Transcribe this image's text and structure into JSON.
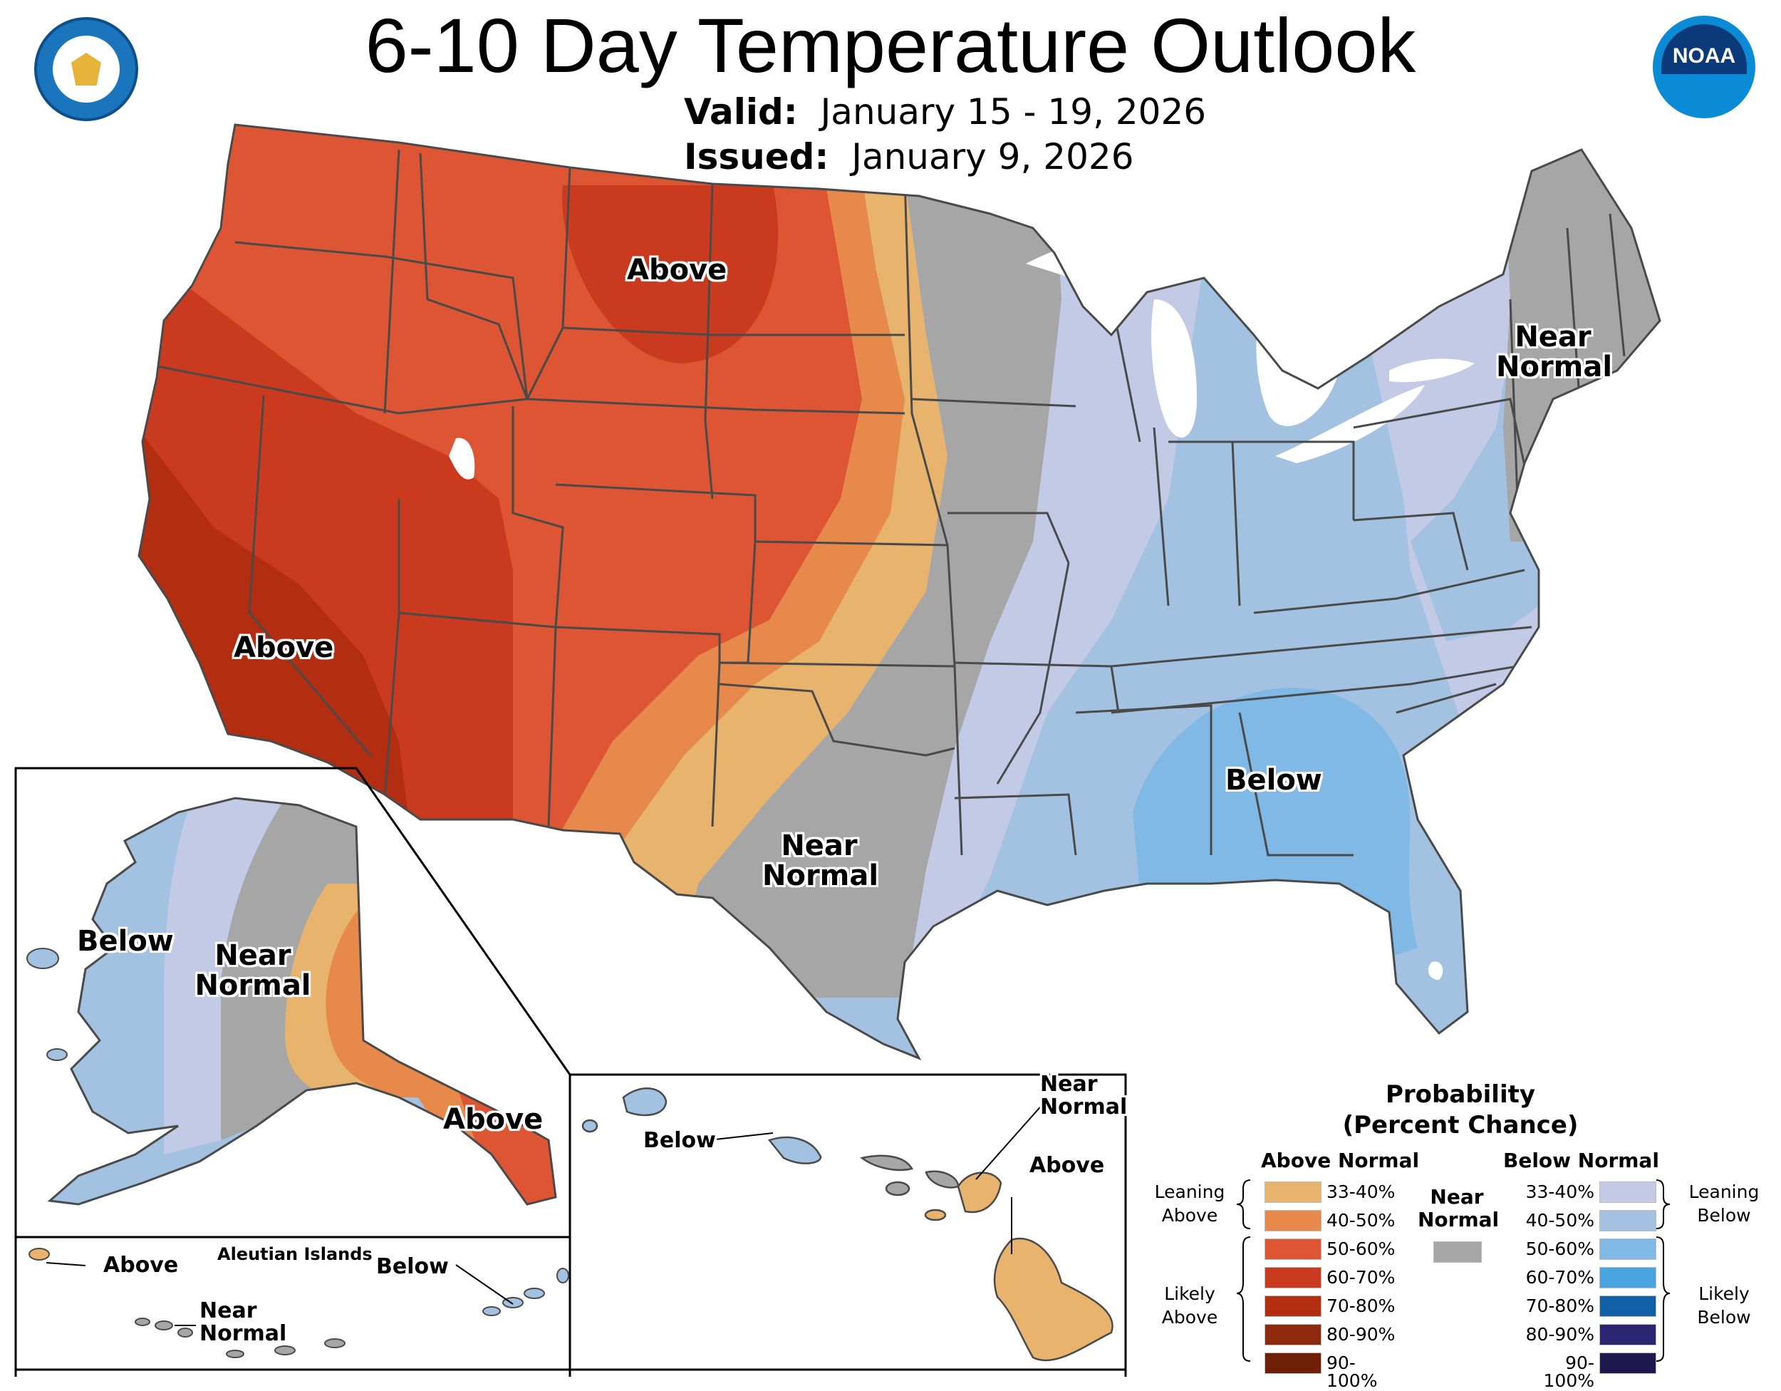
{
  "header": {
    "title": "6-10 Day Temperature Outlook",
    "valid_label": "Valid:",
    "valid_value": "January 15 - 19, 2026",
    "issued_label": "Issued:",
    "issued_value": "January 9, 2026"
  },
  "logos": {
    "left": "Department of Commerce seal",
    "right": "NOAA",
    "right_text": "NOAA"
  },
  "conus_labels": {
    "above_north": "Above",
    "above_west": "Above",
    "near_normal_texas": "Near Normal",
    "near_normal_northeast": "Near Normal",
    "below_southeast": "Below"
  },
  "alaska_labels": {
    "below": "Below",
    "near_normal": "Near Normal",
    "above": "Above"
  },
  "aleutian_labels": {
    "title": "Aleutian Islands",
    "above": "Above",
    "below": "Below",
    "near_normal": "Near Normal"
  },
  "hawaii_labels": {
    "below": "Below",
    "near_normal": "Near Normal",
    "above": "Above"
  },
  "legend": {
    "title_line1": "Probability",
    "title_line2": "(Percent Chance)",
    "above_header": "Above Normal",
    "below_header": "Below Normal",
    "near_header": "Near Normal",
    "leaning_above": "Leaning Above",
    "likely_above": "Likely Above",
    "leaning_below": "Leaning Below",
    "likely_below": "Likely Below",
    "near_color": "#a6a6a6",
    "above_categories": [
      {
        "range": "33-40%",
        "color": "#e8b36d"
      },
      {
        "range": "40-50%",
        "color": "#e6894a"
      },
      {
        "range": "50-60%",
        "color": "#dd5533"
      },
      {
        "range": "60-70%",
        "color": "#c93a1e"
      },
      {
        "range": "70-80%",
        "color": "#b32d10"
      },
      {
        "range": "80-90%",
        "color": "#8e2a0c"
      },
      {
        "range": "90-100%",
        "color": "#6e1f05"
      }
    ],
    "below_categories": [
      {
        "range": "33-40%",
        "color": "#c2cae6"
      },
      {
        "range": "40-50%",
        "color": "#a3c2e2"
      },
      {
        "range": "50-60%",
        "color": "#80b8e6"
      },
      {
        "range": "60-70%",
        "color": "#48a4de"
      },
      {
        "range": "70-80%",
        "color": "#1060a8"
      },
      {
        "range": "80-90%",
        "color": "#2b2470"
      },
      {
        "range": "90-100%",
        "color": "#1d1850"
      }
    ]
  }
}
